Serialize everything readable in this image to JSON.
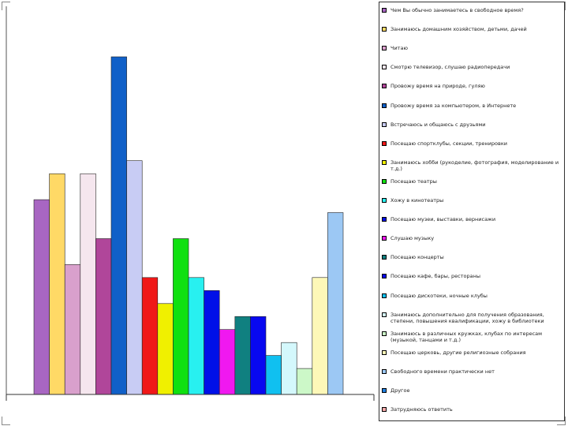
{
  "chart_data": {
    "type": "bar",
    "title": "",
    "xlabel": "",
    "ylabel": "",
    "ylim": [
      0,
      26
    ],
    "grid": false,
    "legend_position": "right",
    "series": [
      {
        "name": "Чем Вы обычно занимаетесь в свободное время?",
        "value": 15,
        "color": "#a866c2"
      },
      {
        "name": "Занимаюсь домашним хозяйством, детьми, дачей",
        "value": 17,
        "color": "#ffd966"
      },
      {
        "name": "Читаю",
        "value": 10,
        "color": "#d9a0cc"
      },
      {
        "name": "Смотрю телевизор, слушаю радиопередачи",
        "value": 17,
        "color": "#f5e6ee"
      },
      {
        "name": "Провожу время на природе, гуляю",
        "value": 12,
        "color": "#b0469a"
      },
      {
        "name": "Провожу время за компьютером, в Интернете",
        "value": 26,
        "color": "#1060c8"
      },
      {
        "name": "Встречаюсь и общаюсь с друзьями",
        "value": 18,
        "color": "#c8ccf4"
      },
      {
        "name": "Посещаю спортклубы, секции, тренировки",
        "value": 9,
        "color": "#f01818"
      },
      {
        "name": "Занимаюсь хобби (рукоделие, фотография, моделирование и т.д.)",
        "value": 7,
        "color": "#f0f000"
      },
      {
        "name": "Посещаю театры",
        "value": 12,
        "color": "#10e010"
      },
      {
        "name": "Хожу в кинотеатры",
        "value": 9,
        "color": "#28f0f0"
      },
      {
        "name": "Посещаю музеи, выставки, вернисажи",
        "value": 8,
        "color": "#0010e8"
      },
      {
        "name": "Слушаю музыку",
        "value": 5,
        "color": "#f018f0"
      },
      {
        "name": "Посещаю концерты",
        "value": 6,
        "color": "#108080"
      },
      {
        "name": "Посещаю кафе, бары, рестораны",
        "value": 6,
        "color": "#0808f0"
      },
      {
        "name": "Посещаю дискотеки, ночные клубы",
        "value": 3,
        "color": "#10c0f0"
      },
      {
        "name": "Занимаюсь дополнительно для получения образования, степени, повышения квалификации, хожу в библиотеки",
        "value": 4,
        "color": "#d4f8fc"
      },
      {
        "name": "Занимаюсь в различных кружках, клубах по интересам (музыкой, танцами и т.д.)",
        "value": 2,
        "color": "#ccf8c8"
      },
      {
        "name": "Посещаю церковь, другие религиозные собрания",
        "value": 9,
        "color": "#fdf8b8"
      },
      {
        "name": "Свободного времени практически нет",
        "value": 14,
        "color": "#9cc8f4"
      },
      {
        "name": "Другое",
        "value": 0,
        "color": "#2080e0"
      },
      {
        "name": "Затрудняюсь ответить",
        "value": 0,
        "color": "#f8a8a8"
      }
    ]
  }
}
